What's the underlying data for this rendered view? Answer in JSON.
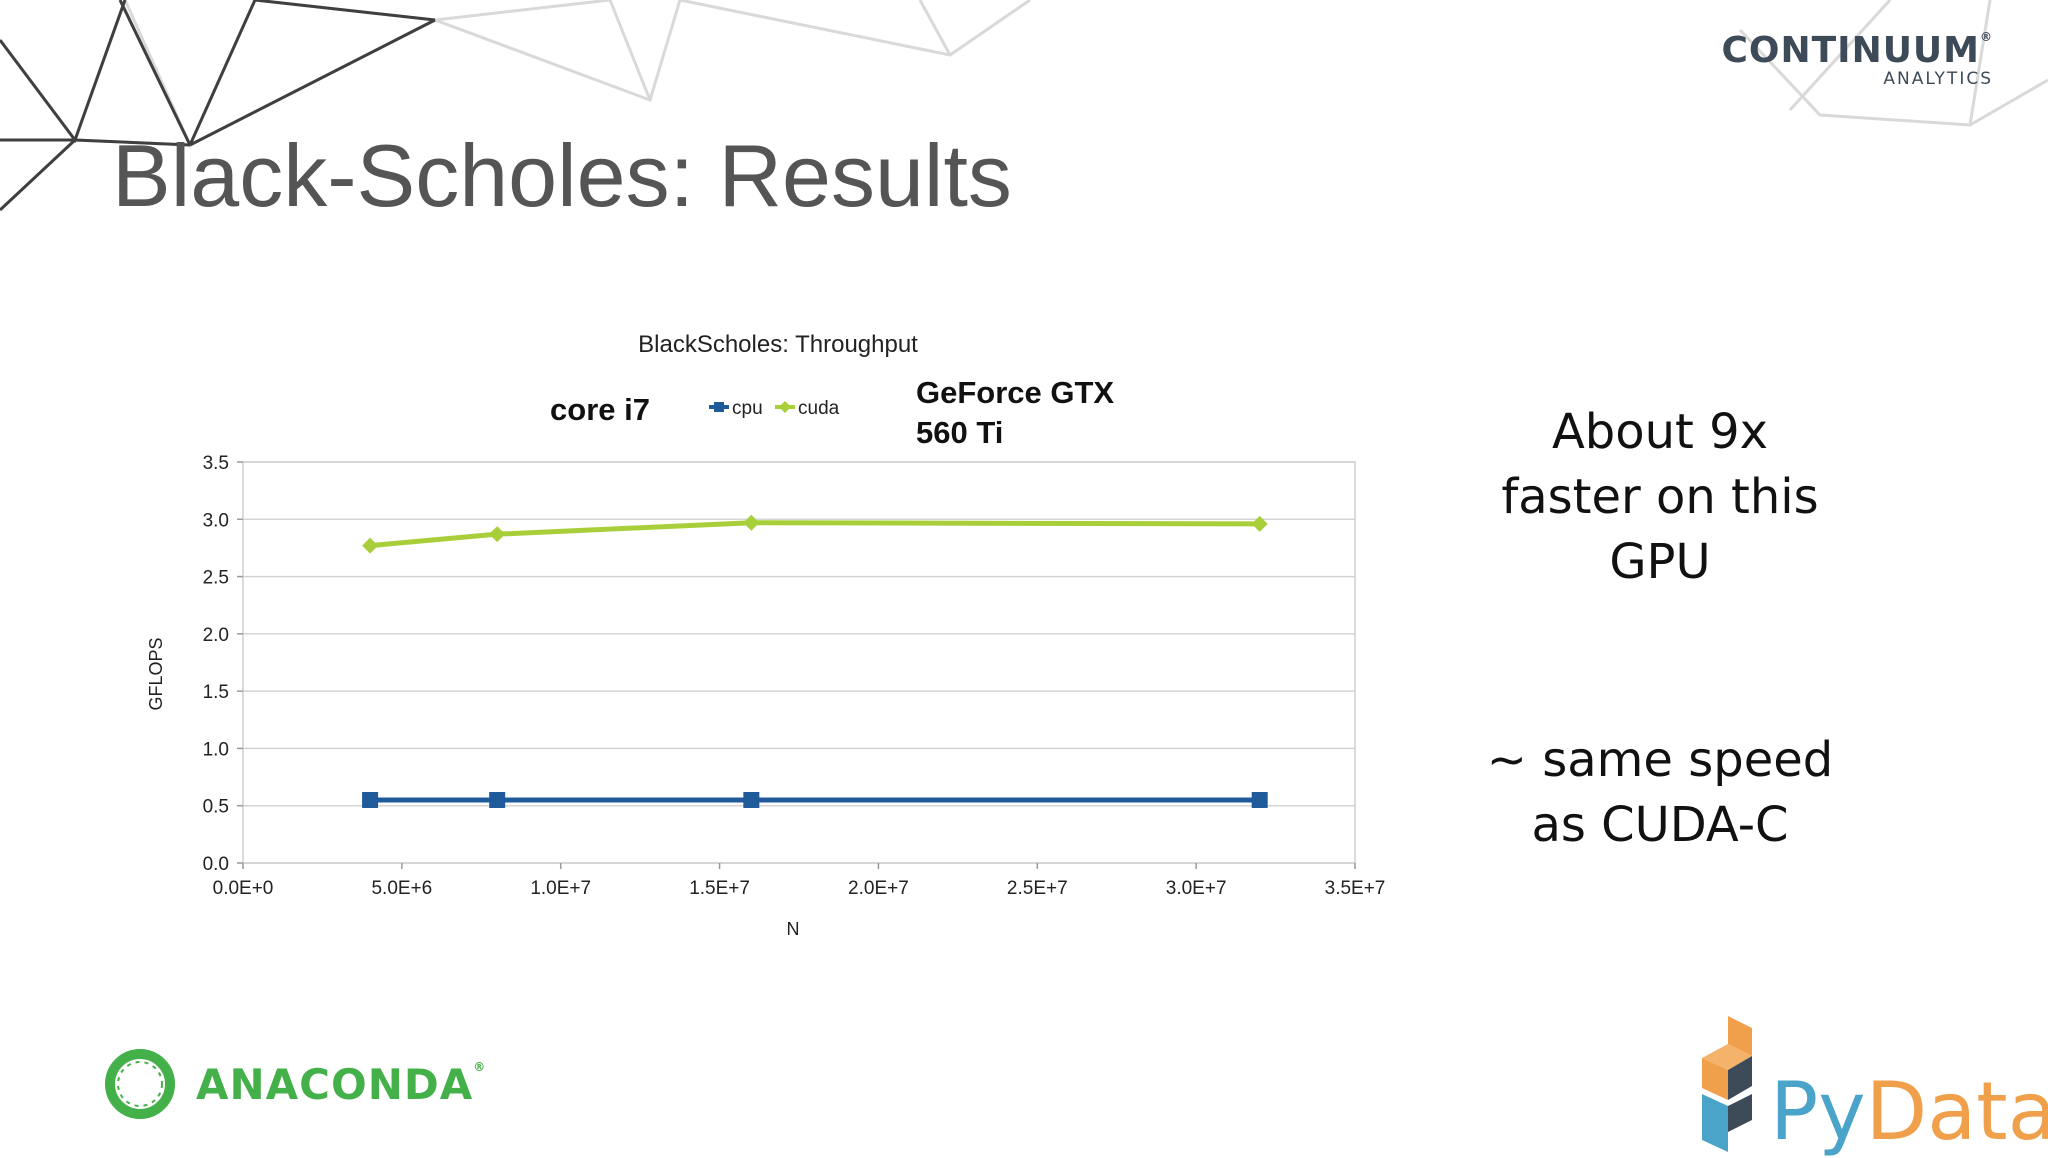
{
  "brand_top": {
    "name": "CONTINUUM",
    "sub": "ANALYTICS"
  },
  "slide_title": "Black-Scholes: Results",
  "annotations": {
    "left": "core i7",
    "right_line1": "GeForce GTX",
    "right_line2": "560 Ti"
  },
  "side_text": {
    "block1": [
      "About 9x",
      "faster on this",
      "GPU"
    ],
    "block2": [
      "~ same speed",
      "as CUDA-C"
    ]
  },
  "logos": {
    "anaconda": "ANACONDA",
    "pydata_py": "Py",
    "pydata_data": "Data"
  },
  "colors": {
    "cpu": "#1f5b9b",
    "cuda": "#a8cf3a",
    "title": "#555555",
    "anaconda": "#44b049"
  },
  "chart_data": {
    "type": "line",
    "title": "BlackScholes: Throughput",
    "xlabel": "N",
    "ylabel": "GFLOPS",
    "xlim": [
      0,
      35000000
    ],
    "ylim": [
      0,
      3.5
    ],
    "xticks": [
      0,
      5000000,
      10000000,
      15000000,
      20000000,
      25000000,
      30000000,
      35000000
    ],
    "xtick_labels": [
      "0.0E+0",
      "5.0E+6",
      "1.0E+7",
      "1.5E+7",
      "2.0E+7",
      "2.5E+7",
      "3.0E+7",
      "3.5E+7"
    ],
    "yticks": [
      0,
      0.5,
      1.0,
      1.5,
      2.0,
      2.5,
      3.0,
      3.5
    ],
    "ytick_labels": [
      "0.0",
      "0.5",
      "1.0",
      "1.5",
      "2.0",
      "2.5",
      "3.0",
      "3.5"
    ],
    "grid": true,
    "legend": "top",
    "series": [
      {
        "name": "cpu",
        "marker": "square",
        "x": [
          4000000,
          8000000,
          16000000,
          32000000
        ],
        "y": [
          0.55,
          0.55,
          0.55,
          0.55
        ]
      },
      {
        "name": "cuda",
        "marker": "diamond",
        "x": [
          4000000,
          8000000,
          16000000,
          32000000
        ],
        "y": [
          2.77,
          2.87,
          2.97,
          2.96
        ]
      }
    ]
  }
}
